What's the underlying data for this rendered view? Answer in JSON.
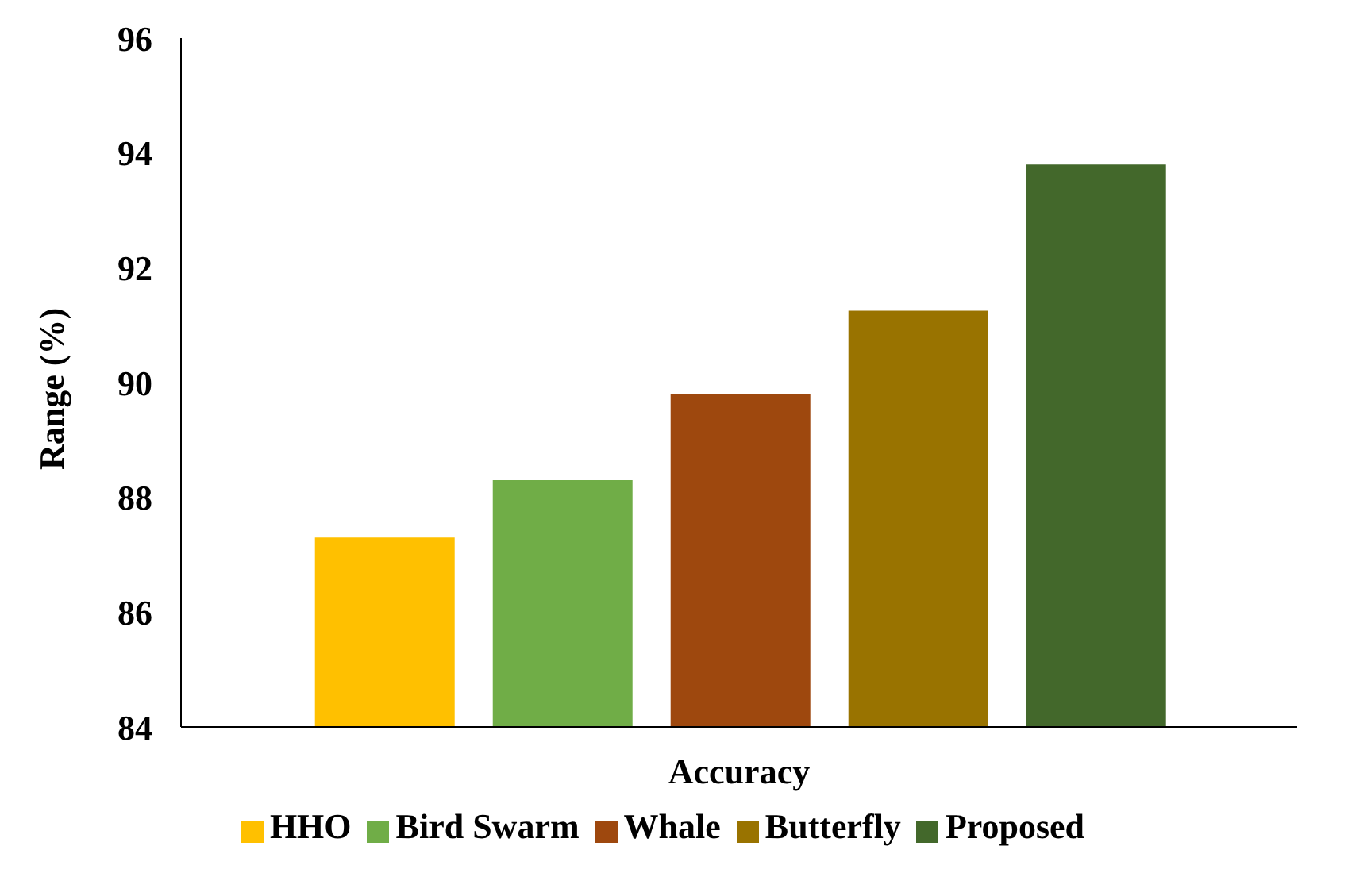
{
  "chart_data": {
    "type": "bar",
    "ylabel": "Range (%)",
    "categories": [
      "Accuracy"
    ],
    "series": [
      {
        "name": "HHO",
        "color": "#ffc000",
        "values": [
          87.3
        ]
      },
      {
        "name": "Bird Swarm",
        "color": "#70ad47",
        "values": [
          88.3
        ]
      },
      {
        "name": "Whale",
        "color": "#9e480e",
        "values": [
          89.8
        ]
      },
      {
        "name": "Butterfly",
        "color": "#997300",
        "values": [
          91.25
        ]
      },
      {
        "name": "Proposed",
        "color": "#43682b",
        "values": [
          93.8
        ]
      }
    ],
    "ylim": [
      84,
      96
    ],
    "yticks": [
      84,
      86,
      88,
      90,
      92,
      94,
      96
    ],
    "grid": false,
    "legend": "bottom"
  }
}
